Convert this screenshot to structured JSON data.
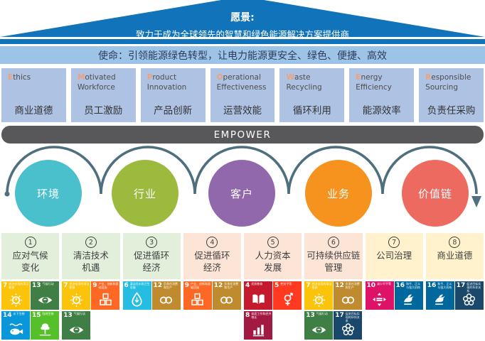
{
  "colors": {
    "roof": "#1173b9",
    "mission-bg": "#9dc3e6",
    "pillar-bg": "#aec3e4",
    "pillar-initial": "#f0a17a",
    "empower-bg": "#58585a",
    "arc": "#4e6f7d"
  },
  "vision": {
    "label": "愿景:",
    "text": "致力于成为全球领先的智慧和绿色能源解决方案提供商"
  },
  "mission": {
    "text": "使命：引领能源绿色转型，让电力能源更安全、绿色、便捷、高效"
  },
  "pillars": [
    {
      "initial": "E",
      "rest": "thics",
      "line2": "",
      "zh": "商业道德"
    },
    {
      "initial": "M",
      "rest": "otivated",
      "line2": "Workforce",
      "zh": "员工激励"
    },
    {
      "initial": "P",
      "rest": "roduct",
      "line2": "Innovation",
      "zh": "产品创新"
    },
    {
      "initial": "O",
      "rest": "perational",
      "line2": "Effectiveness",
      "zh": "运营效能"
    },
    {
      "initial": "W",
      "rest": "aste",
      "line2": "Recycling",
      "zh": "循环利用"
    },
    {
      "initial": "E",
      "rest": "nergy",
      "line2": "Efficiency",
      "zh": "能源效率"
    },
    {
      "initial": "R",
      "rest": "esponsible",
      "line2": "Sourcing",
      "zh": "负责任采购"
    }
  ],
  "empower_bar": {
    "label": "EMPOWER"
  },
  "stakeholders": [
    {
      "label": "环境",
      "color": "#4bc0cd"
    },
    {
      "label": "行业",
      "color": "#9cba3e"
    },
    {
      "label": "客户",
      "color": "#9168ab"
    },
    {
      "label": "业务",
      "color": "#f6921e"
    },
    {
      "label": "价值链",
      "color": "#ed6a60"
    }
  ],
  "issues": [
    {
      "num": "1",
      "label": "应对气候\n变化",
      "bg": "#e2efda",
      "sdgs": [
        7,
        13,
        14,
        15
      ]
    },
    {
      "num": "2",
      "label": "清洁技术\n机遇",
      "bg": "#e2efda",
      "sdgs": [
        7,
        9,
        13
      ]
    },
    {
      "num": "3",
      "label": "促进循环\n经济",
      "bg": "#e2efda",
      "sdgs": [
        6,
        12
      ]
    },
    {
      "num": "4",
      "label": "促进循环\n经济",
      "bg": "#fce4d6",
      "sdgs": [
        9,
        12
      ]
    },
    {
      "num": "5",
      "label": "人力资本\n发展",
      "bg": "#fce4d6",
      "sdgs": [
        4,
        5,
        8
      ]
    },
    {
      "num": "6",
      "label": "可持续供应链\n管理",
      "bg": "#fce4d6",
      "sdgs": [
        7,
        12,
        13,
        17
      ]
    },
    {
      "num": "7",
      "label": "公司治理",
      "bg": "#fff2cc",
      "sdgs": [
        10,
        16
      ]
    },
    {
      "num": "8",
      "label": "商业道德",
      "bg": "#fff2cc",
      "sdgs": [
        16,
        17
      ]
    }
  ],
  "sdg_catalog": {
    "4": {
      "title": "优质教育",
      "color": "#C5192D"
    },
    "5": {
      "title": "性别平等",
      "color": "#FF3A21"
    },
    "6": {
      "title": "清洁饮水和卫生设施",
      "color": "#26BDE2"
    },
    "7": {
      "title": "经济适用的清洁能源",
      "color": "#FCC30B"
    },
    "8": {
      "title": "体面工作和经济增长",
      "color": "#A21942"
    },
    "9": {
      "title": "产业、创新和基础设施",
      "color": "#FD6925"
    },
    "10": {
      "title": "减少不平等",
      "color": "#DD1367"
    },
    "12": {
      "title": "负责任消费和生产",
      "color": "#BF8B2E"
    },
    "13": {
      "title": "气候行动",
      "color": "#3F7E44"
    },
    "14": {
      "title": "水下生物",
      "color": "#0A97D9"
    },
    "15": {
      "title": "陆地生物",
      "color": "#56C02B"
    },
    "16": {
      "title": "和平、正义与强大机构",
      "color": "#00689D"
    },
    "17": {
      "title": "促进目标实现的伙伴关系",
      "color": "#19486A"
    }
  }
}
